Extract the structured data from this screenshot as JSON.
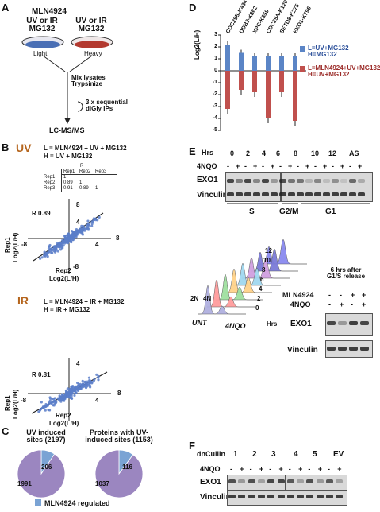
{
  "panels": {
    "a": {
      "label": "A",
      "condition_top": "MLN4924",
      "dish_left_label": "UV or IR\nMG132",
      "dish_left_sub": "Light",
      "dish_right_label": "UV or IR\nMG132",
      "dish_right_sub": "Heavy",
      "step1": "Mix lysates\nTrypsinize",
      "step2": "3 x sequential\ndiGly IPs",
      "final": "LC-MS/MS",
      "colors": {
        "light": "#4a6fb5",
        "heavy": "#b3392f"
      }
    },
    "b": {
      "label": "B",
      "uv_title": "UV",
      "uv_legend_l": "L = MLN4924 + UV + MG132",
      "uv_legend_h": "H = UV + MG132",
      "corr_table": {
        "col_group": "R",
        "cols": [
          "Rep1",
          "Rep2",
          "Rep3"
        ],
        "rows": [
          {
            "name": "Rep1",
            "vals": [
              "1",
              "",
              ""
            ]
          },
          {
            "name": "Rep2",
            "vals": [
              "0.89",
              "1",
              ""
            ]
          },
          {
            "name": "Rep3",
            "vals": [
              "0.91",
              "0.89",
              "1"
            ]
          }
        ]
      },
      "uv_r": "R 0.89",
      "ir_title": "IR",
      "ir_legend_l": "L = MLN4924 + IR + MG132",
      "ir_legend_h": "H = IR + MG132",
      "ir_r": "R 0.81",
      "ylabel_1": "Rep1",
      "ylabel_2": "Log2(L/H)",
      "xlabel_1": "Rep2",
      "xlabel_2": "Log2(L/H)",
      "ticks": {
        "neg": "-8",
        "pos4": "4",
        "pos8": "8",
        "yneg": "-8"
      }
    },
    "c": {
      "label": "C",
      "pie1_title": "UV induced\nsites (2197)",
      "pie2_title": "Proteins with UV-\ninduced sites (1153)",
      "legend": "MLN4924 regulated",
      "legend_color": "#7aa3d4",
      "main_color": "#9b86c0"
    },
    "d": {
      "label": "D",
      "legend_blue": "L=UV+MG132\nH=MG132",
      "legend_red": "L=MLN4924+UV+MG132\nH=UV+MG132",
      "colors": {
        "blue": "#5b85c6",
        "red": "#c0504d"
      }
    },
    "e": {
      "label": "E",
      "hrs_label": "Hrs",
      "timepoints": [
        "0",
        "2",
        "4",
        "6",
        "8",
        "10",
        "12",
        "AS"
      ],
      "nqo_label": "4NQO",
      "pm": [
        "-",
        "+",
        "-",
        "+",
        "-",
        "+",
        "-",
        "+",
        "-",
        "+",
        "-",
        "+",
        "-",
        "+",
        "-",
        "+"
      ],
      "row1": "EXO1",
      "row2": "Vinculin",
      "phases": [
        "S",
        "G2/M",
        "G1"
      ],
      "flow_labels": {
        "n2": "2N",
        "n4": "4N",
        "unt": "UNT",
        "nqo": "4NQO",
        "hrs": "Hrs"
      },
      "flow_hours": [
        "12",
        "10",
        "8",
        "6",
        "4",
        "2",
        "0"
      ],
      "side_title": "6 hrs after\nG1/S release",
      "side_mln": "MLN4924",
      "side_nqo": "4NQO",
      "side_mln_pm": [
        "-",
        "-",
        "+",
        "+"
      ],
      "side_nqo_pm": [
        "-",
        "+",
        "-",
        "+"
      ],
      "side_row1": "EXO1",
      "side_row2": "Vinculin"
    },
    "f": {
      "label": "F",
      "dn_label": "dnCullin",
      "groups": [
        "1",
        "2",
        "3",
        "4",
        "5",
        "EV"
      ],
      "nqo_label": "4NQO",
      "pm": [
        "-",
        "+",
        "-",
        "+",
        "-",
        "+",
        "-",
        "+",
        "-",
        "+",
        "-",
        "+"
      ],
      "row1": "EXO1",
      "row2": "Vinculin"
    }
  },
  "chart_data": [
    {
      "type": "bar",
      "panel": "D",
      "categories": [
        "CDC25B-K434",
        "DDB2-K362",
        "XPC-K359",
        "CDC25A-K120",
        "SETD8-K275",
        "EXO1-K796"
      ],
      "ylabel": "Log2(L/H)",
      "ylim": [
        -5,
        3
      ],
      "yticks": [
        "3",
        "2",
        "1",
        "0",
        "-1",
        "-2",
        "-3",
        "-4",
        "-5"
      ],
      "series": [
        {
          "name": "L=UV+MG132 H=MG132",
          "values": [
            2.2,
            1.5,
            1.2,
            1.2,
            1.2,
            1.2
          ]
        },
        {
          "name": "L=MLN4924+UV+MG132 H=UV+MG132",
          "values": [
            -3.2,
            -1.6,
            -1.8,
            -4.0,
            -1.8,
            -4.2
          ]
        }
      ]
    },
    {
      "type": "pie",
      "panel": "C",
      "title": "UV induced\nsites (2197)",
      "values": [
        206,
        1991
      ]
    },
    {
      "type": "pie",
      "panel": "C",
      "title": "Proteins with UV-\ninduced sites (1153)",
      "values": [
        116,
        1037
      ]
    }
  ]
}
